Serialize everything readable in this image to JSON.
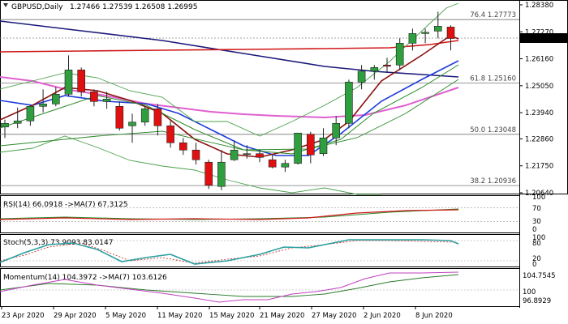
{
  "header": {
    "symbol": "GBPUSD,Daily",
    "ohlc": "1.27466 1.27539 1.26508 1.26995"
  },
  "price_axis": {
    "ticks": [
      "1.28380",
      "1.27270",
      "1.26160",
      "1.25050",
      "1.23940",
      "1.22860",
      "1.21750",
      "1.20640"
    ],
    "current": "1.26995"
  },
  "fib_levels": [
    {
      "label": "76.4 1.27773",
      "value": 1.27773
    },
    {
      "label": "61.8 1.25160",
      "value": 1.2516
    },
    {
      "label": "50.0 1.23048",
      "value": 1.23048
    },
    {
      "label": "38.2 1.20936",
      "value": 1.20936
    }
  ],
  "rsi": {
    "label": "RSI(14) 66.0918 ->MA(7) 67.3125",
    "axis": [
      "100",
      "70",
      "30",
      "0"
    ]
  },
  "stoch": {
    "label": "Stoch(5,3,3) 73.9093 83.0147",
    "axis": [
      "100",
      "80",
      "20",
      "0"
    ]
  },
  "momentum": {
    "label": "Momentum(14) 104.3972 ->MA(7) 103.6126",
    "axis": [
      "104.7545",
      "100",
      "96.8929"
    ]
  },
  "date_axis": [
    "23 Apr 2020",
    "29 Apr 2020",
    "5 May 2020",
    "11 May 2020",
    "15 May 2020",
    "21 May 2020",
    "27 May 2020",
    "2 Jun 2020",
    "8 Jun 2020"
  ],
  "colors": {
    "bull": "#2e9e3e",
    "bear": "#e01010",
    "ma_red": "#d01818",
    "ma_navy": "#1a1a7a",
    "ma_blue": "#1e3cdc",
    "ma_magenta": "#e060d0",
    "ma_darkred": "#8b1010",
    "ma_green": "#2a8a2a",
    "band": "#4aa04a"
  },
  "chart_data": {
    "type": "candlestick",
    "categories": [
      "23 Apr 2020",
      "24 Apr",
      "27 Apr",
      "28 Apr",
      "29 Apr 2020",
      "30 Apr",
      "1 May",
      "4 May",
      "5 May 2020",
      "6 May",
      "7 May",
      "8 May",
      "11 May 2020",
      "12 May",
      "13 May",
      "14 May",
      "15 May 2020",
      "18 May",
      "19 May",
      "20 May",
      "21 May 2020",
      "22 May",
      "25 May",
      "26 May",
      "27 May 2020",
      "28 May",
      "29 May",
      "1 Jun",
      "2 Jun 2020",
      "3 Jun",
      "4 Jun",
      "5 Jun",
      "8 Jun 2020",
      "9 Jun",
      "10 Jun",
      "11 Jun"
    ],
    "series": [
      {
        "open": 1.2335,
        "high": 1.2365,
        "low": 1.229,
        "close": 1.235
      },
      {
        "open": 1.235,
        "high": 1.2415,
        "low": 1.233,
        "close": 1.236
      },
      {
        "open": 1.236,
        "high": 1.242,
        "low": 1.234,
        "close": 1.242
      },
      {
        "open": 1.242,
        "high": 1.249,
        "low": 1.2395,
        "close": 1.243
      },
      {
        "open": 1.243,
        "high": 1.25,
        "low": 1.242,
        "close": 1.247
      },
      {
        "open": 1.247,
        "high": 1.263,
        "low": 1.246,
        "close": 1.257
      },
      {
        "open": 1.257,
        "high": 1.258,
        "low": 1.246,
        "close": 1.248
      },
      {
        "open": 1.248,
        "high": 1.249,
        "low": 1.242,
        "close": 1.244
      },
      {
        "open": 1.244,
        "high": 1.248,
        "low": 1.241,
        "close": 1.245
      },
      {
        "open": 1.242,
        "high": 1.244,
        "low": 1.232,
        "close": 1.233
      },
      {
        "open": 1.234,
        "high": 1.239,
        "low": 1.227,
        "close": 1.2355
      },
      {
        "open": 1.2355,
        "high": 1.242,
        "low": 1.234,
        "close": 1.241
      },
      {
        "open": 1.241,
        "high": 1.243,
        "low": 1.23,
        "close": 1.234
      },
      {
        "open": 1.234,
        "high": 1.236,
        "low": 1.225,
        "close": 1.227
      },
      {
        "open": 1.227,
        "high": 1.229,
        "low": 1.222,
        "close": 1.224
      },
      {
        "open": 1.224,
        "high": 1.227,
        "low": 1.218,
        "close": 1.22
      },
      {
        "open": 1.219,
        "high": 1.22,
        "low": 1.208,
        "close": 1.2095
      },
      {
        "open": 1.209,
        "high": 1.224,
        "low": 1.2075,
        "close": 1.219
      },
      {
        "open": 1.22,
        "high": 1.228,
        "low": 1.2195,
        "close": 1.224
      },
      {
        "open": 1.2225,
        "high": 1.226,
        "low": 1.2205,
        "close": 1.2225
      },
      {
        "open": 1.2225,
        "high": 1.224,
        "low": 1.219,
        "close": 1.221
      },
      {
        "open": 1.22,
        "high": 1.222,
        "low": 1.2165,
        "close": 1.217
      },
      {
        "open": 1.217,
        "high": 1.22,
        "low": 1.215,
        "close": 1.2185
      },
      {
        "open": 1.2185,
        "high": 1.231,
        "low": 1.218,
        "close": 1.231
      },
      {
        "open": 1.2305,
        "high": 1.2315,
        "low": 1.2185,
        "close": 1.222
      },
      {
        "open": 1.2225,
        "high": 1.233,
        "low": 1.2215,
        "close": 1.229
      },
      {
        "open": 1.229,
        "high": 1.238,
        "low": 1.226,
        "close": 1.235
      },
      {
        "open": 1.235,
        "high": 1.253,
        "low": 1.233,
        "close": 1.252
      },
      {
        "open": 1.252,
        "high": 1.259,
        "low": 1.249,
        "close": 1.2565
      },
      {
        "open": 1.2565,
        "high": 1.259,
        "low": 1.253,
        "close": 1.258
      },
      {
        "open": 1.259,
        "high": 1.262,
        "low": 1.256,
        "close": 1.2585
      },
      {
        "open": 1.259,
        "high": 1.27,
        "low": 1.257,
        "close": 1.268
      },
      {
        "open": 1.268,
        "high": 1.274,
        "low": 1.265,
        "close": 1.272
      },
      {
        "open": 1.272,
        "high": 1.274,
        "low": 1.268,
        "close": 1.2725
      },
      {
        "open": 1.273,
        "high": 1.281,
        "low": 1.27,
        "close": 1.275
      },
      {
        "open": 1.27466,
        "high": 1.27539,
        "low": 1.26508,
        "close": 1.26995
      }
    ]
  }
}
